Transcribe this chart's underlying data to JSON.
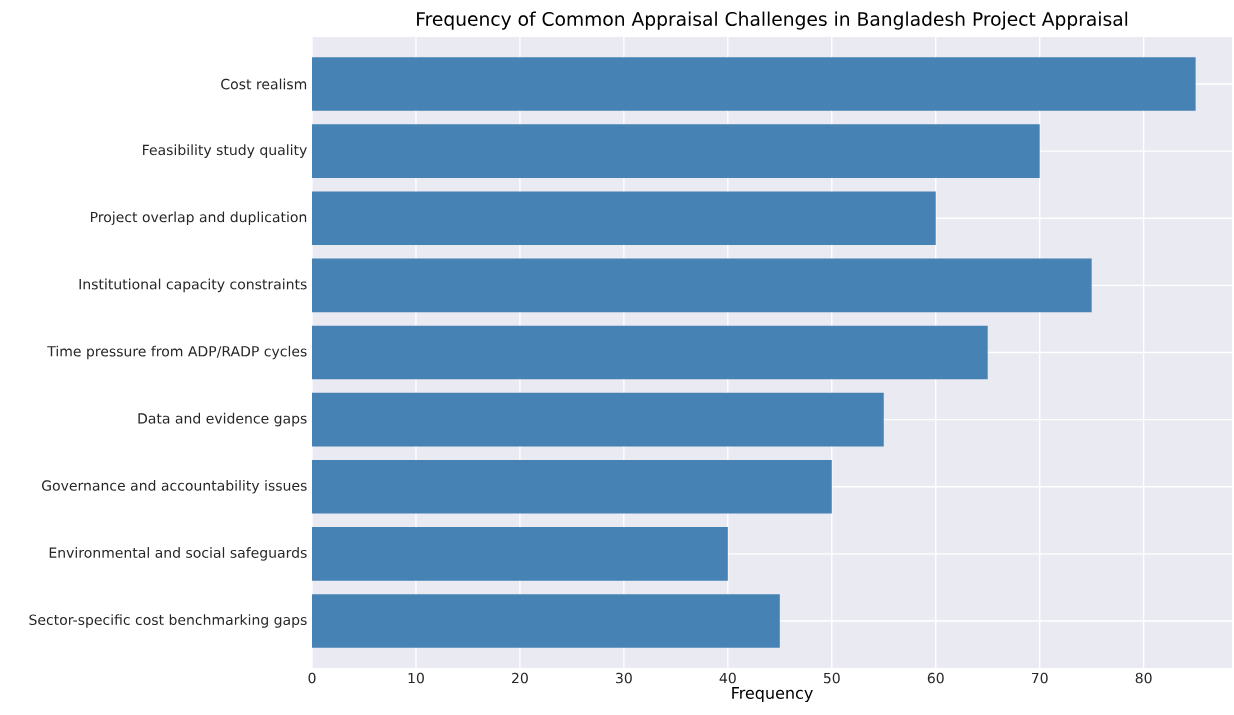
{
  "chart_data": {
    "type": "bar",
    "orientation": "horizontal",
    "title": "Frequency of Common Appraisal Challenges in Bangladesh Project Appraisal",
    "xlabel": "Frequency",
    "categories": [
      "Cost realism",
      "Feasibility study quality",
      "Project overlap and duplication",
      "Institutional capacity constraints",
      "Time pressure from ADP/RADP cycles",
      "Data and evidence gaps",
      "Governance and accountability issues",
      "Environmental and social safeguards",
      "Sector-specific cost benchmarking gaps"
    ],
    "values": [
      85,
      70,
      60,
      75,
      65,
      55,
      50,
      40,
      45
    ],
    "color": "#4682b4",
    "xlim": [
      0,
      88.5
    ],
    "xticks": [
      0,
      10,
      20,
      30,
      40,
      50,
      60,
      70,
      80
    ],
    "grid": true
  }
}
